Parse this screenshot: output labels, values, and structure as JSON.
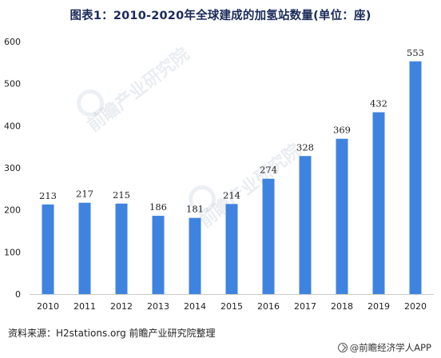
{
  "title": "图表1：2010-2020年全球建成的加氢站数量(单位：座)",
  "source": "资料来源：H2stations.org 前瞻产业研究院整理",
  "brand": "@前瞻经济学人APP",
  "watermark": "前瞻产业研究院",
  "colors": {
    "bar": "#3f83e0",
    "axis": "#cccccc",
    "text": "#222222"
  },
  "chart_data": {
    "type": "bar",
    "title": "图表1：2010-2020年全球建成的加氢站数量(单位：座)",
    "categories": [
      "2010",
      "2011",
      "2012",
      "2013",
      "2014",
      "2015",
      "2016",
      "2017",
      "2018",
      "2019",
      "2020"
    ],
    "values": [
      213,
      217,
      215,
      186,
      181,
      214,
      274,
      328,
      369,
      432,
      553
    ],
    "ylim": [
      0,
      600
    ],
    "yticks": [
      0,
      100,
      200,
      300,
      400,
      500,
      600
    ],
    "grid": false,
    "legend": "none",
    "data_labels": true
  }
}
